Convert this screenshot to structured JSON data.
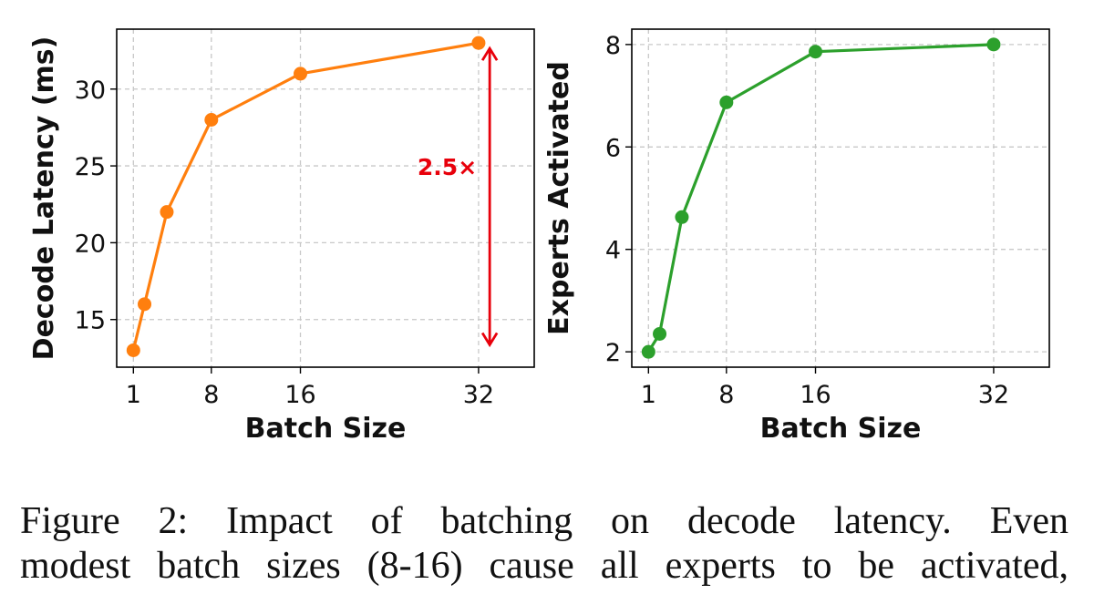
{
  "chart_data": [
    {
      "type": "line",
      "title": "",
      "xlabel": "Batch Size",
      "ylabel": "Decode Latency (ms)",
      "xticks": [
        1,
        8,
        16,
        32
      ],
      "yticks": [
        15,
        20,
        25,
        30
      ],
      "xlim": [
        -0.5,
        37
      ],
      "ylim": [
        11.9,
        33.9
      ],
      "grid": true,
      "color": "#ff7f0e",
      "series": [
        {
          "name": "Decode Latency",
          "x": [
            1,
            2,
            4,
            8,
            16,
            32
          ],
          "y": [
            13,
            16,
            22,
            28,
            31,
            33
          ]
        }
      ],
      "annotation": {
        "text": "2.5×",
        "x": 33,
        "y_from": 33,
        "y_to": 13,
        "color": "#e8000b"
      }
    },
    {
      "type": "line",
      "title": "",
      "xlabel": "Batch Size",
      "ylabel": "Experts Activated",
      "xticks": [
        1,
        8,
        16,
        32
      ],
      "yticks": [
        2,
        4,
        6,
        8
      ],
      "xlim": [
        -0.5,
        37
      ],
      "ylim": [
        1.7,
        8.3
      ],
      "grid": true,
      "color": "#2ca02c",
      "series": [
        {
          "name": "Experts Activated",
          "x": [
            1,
            2,
            4,
            8,
            16,
            32
          ],
          "y": [
            2,
            2.35,
            4.63,
            6.87,
            7.86,
            8
          ]
        }
      ]
    }
  ],
  "caption": {
    "lines": [
      "Figure 2: Impact of batching on decode latency. Even",
      "modest batch sizes (8-16) cause all experts to be activated,"
    ]
  }
}
